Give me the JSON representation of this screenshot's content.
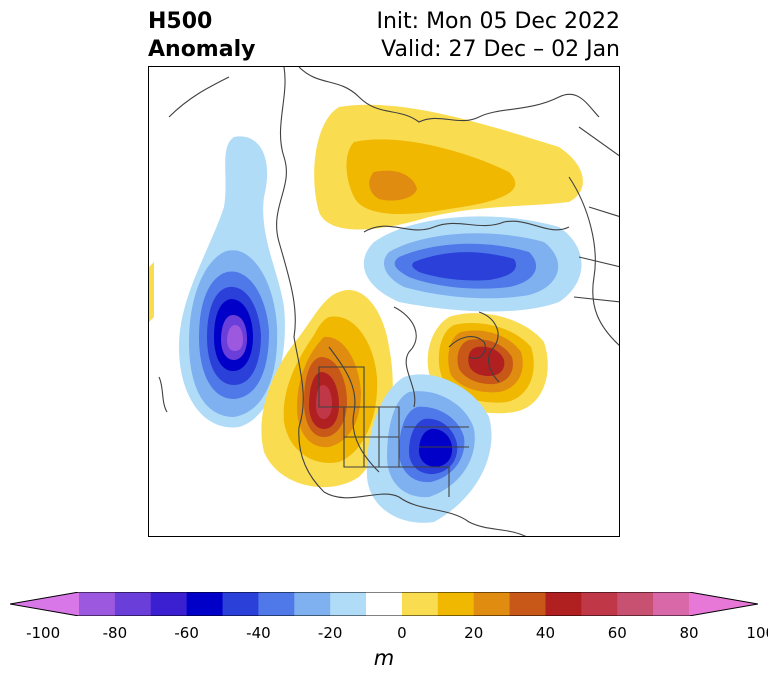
{
  "title": {
    "left_line1": "H500",
    "left_line2": "Anomaly",
    "right_line1": "Init: Mon 05 Dec 2022",
    "right_line2": "Valid: 27 Dec – 02 Jan"
  },
  "colorbar": {
    "unit": "m",
    "ticks": [
      "-100",
      "-80",
      "-60",
      "-40",
      "-20",
      "0",
      "20",
      "40",
      "60",
      "80",
      "100"
    ],
    "colors": [
      "#d878e8",
      "#9d58e0",
      "#6a3ed8",
      "#3a20d0",
      "#0000c8",
      "#2a40d8",
      "#4f78e8",
      "#7fb0f0",
      "#b0dcf8",
      "#ffffff",
      "#fadc50",
      "#f0b800",
      "#e08c10",
      "#c85818",
      "#b02020",
      "#c03848",
      "#c85070",
      "#d868a8",
      "#e878d8"
    ],
    "extend_low": "#d878e8",
    "extend_high": "#e878d8"
  },
  "map": {
    "field": "500 hPa geopotential height anomaly",
    "negative_centers": [
      "NE Pacific / Gulf of Alaska",
      "Great Lakes / Eastern Canada",
      "Northern Siberia / Arctic"
    ],
    "positive_centers": [
      "Western North America",
      "North Atlantic / Greenland",
      "Northern Eurasia"
    ]
  }
}
